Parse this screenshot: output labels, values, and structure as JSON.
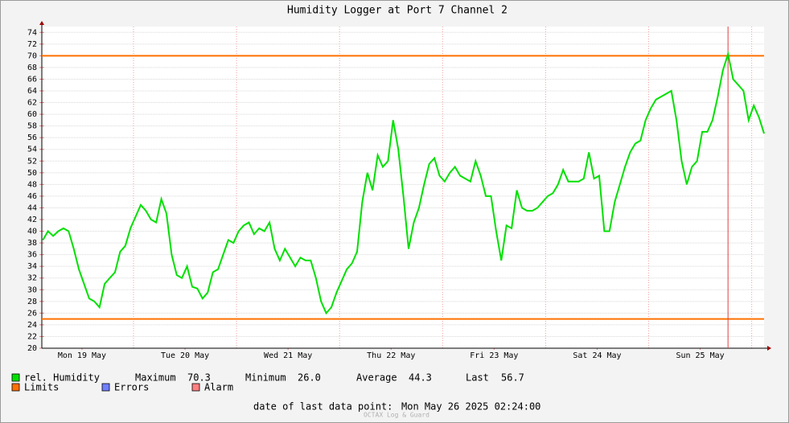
{
  "chart_data": {
    "type": "line",
    "title": "Humidity Logger at Port 7 Channel 2",
    "x": [
      0.12,
      0.17,
      0.22,
      0.27,
      0.32,
      0.37,
      0.42,
      0.47,
      0.52,
      0.57,
      0.62,
      0.67,
      0.72,
      0.77,
      0.82,
      0.87,
      0.92,
      0.97,
      1.02,
      1.07,
      1.12,
      1.17,
      1.22,
      1.27,
      1.32,
      1.37,
      1.42,
      1.47,
      1.52,
      1.57,
      1.62,
      1.67,
      1.72,
      1.77,
      1.82,
      1.87,
      1.92,
      1.97,
      2.02,
      2.07,
      2.12,
      2.17,
      2.22,
      2.27,
      2.32,
      2.37,
      2.42,
      2.47,
      2.52,
      2.57,
      2.62,
      2.67,
      2.72,
      2.77,
      2.82,
      2.87,
      2.92,
      2.97,
      3.02,
      3.07,
      3.12,
      3.17,
      3.22,
      3.27,
      3.32,
      3.37,
      3.42,
      3.47,
      3.52,
      3.57,
      3.62,
      3.67,
      3.72,
      3.77,
      3.82,
      3.87,
      3.92,
      3.97,
      4.02,
      4.07,
      4.12,
      4.17,
      4.22,
      4.27,
      4.32,
      4.37,
      4.42,
      4.47,
      4.52,
      4.57,
      4.62,
      4.67,
      4.72,
      4.77,
      4.82,
      4.87,
      4.92,
      4.97,
      5.02,
      5.07,
      5.12,
      5.17,
      5.22,
      5.27,
      5.32,
      5.37,
      5.42,
      5.47,
      5.52,
      5.57,
      5.62,
      5.67,
      5.72,
      5.77,
      5.82,
      5.87,
      5.92,
      5.97,
      6.02,
      6.07,
      6.12,
      6.17,
      6.22,
      6.27,
      6.32,
      6.37,
      6.42,
      6.47,
      6.52,
      6.57,
      6.62,
      6.67,
      6.72,
      6.77,
      6.82,
      6.87,
      6.92,
      6.97,
      7.02,
      7.07,
      7.12
    ],
    "series": [
      {
        "name": "rel. Humidity",
        "color": "#00e000",
        "values": [
          38.5,
          40,
          39.2,
          40,
          40.5,
          40,
          37,
          33.5,
          31,
          28.5,
          28,
          27,
          31,
          32,
          33,
          36.5,
          37.5,
          40.5,
          42.5,
          44.5,
          43.5,
          42,
          41.5,
          45.5,
          43,
          36,
          32.5,
          32,
          34,
          30.5,
          30.2,
          28.5,
          29.5,
          33,
          33.5,
          36,
          38.5,
          38,
          40,
          41,
          41.5,
          39.5,
          40.5,
          40,
          41.5,
          37,
          35,
          37,
          35.5,
          34,
          35.5,
          35,
          35,
          32,
          28,
          26,
          27,
          29.5,
          31.5,
          33.5,
          34.5,
          36.5,
          45,
          50,
          47,
          53,
          51,
          52,
          59,
          54,
          46,
          37,
          41.5,
          44,
          48,
          51.5,
          52.5,
          49.5,
          48.5,
          50,
          51,
          49.5,
          49,
          48.5,
          52,
          49.5,
          46,
          46,
          40,
          35,
          41,
          40.5,
          47,
          44,
          43.5,
          43.5,
          44,
          45,
          46,
          46.5,
          48,
          50.5,
          48.5,
          48.5,
          48.5,
          49,
          53.5,
          49,
          49.5,
          40,
          40,
          45,
          48,
          51,
          53.5,
          55,
          55.5,
          59,
          61,
          62.5,
          63,
          63.5,
          64,
          59,
          52,
          48,
          51,
          52,
          57,
          57,
          59,
          63,
          67.5,
          70.3,
          66,
          65,
          64,
          59,
          61.5,
          59.5,
          56.7
        ]
      }
    ],
    "xlim": [
      0.11,
      7.12
    ],
    "xticks": [
      {
        "value": 0.5,
        "label": "Mon 19 May"
      },
      {
        "value": 1.5,
        "label": "Tue 20 May"
      },
      {
        "value": 2.5,
        "label": "Wed 21 May"
      },
      {
        "value": 3.5,
        "label": "Thu 22 May"
      },
      {
        "value": 4.5,
        "label": "Fri 23 May"
      },
      {
        "value": 5.5,
        "label": "Sat 24 May"
      },
      {
        "value": 6.5,
        "label": "Sun 25 May"
      }
    ],
    "ylim": [
      20,
      75
    ],
    "yticks": [
      20,
      22,
      24,
      26,
      28,
      30,
      32,
      34,
      36,
      38,
      40,
      42,
      44,
      46,
      48,
      50,
      52,
      54,
      56,
      58,
      60,
      62,
      64,
      66,
      68,
      70,
      72,
      74
    ],
    "grid": true,
    "limits": {
      "name": "Limits",
      "color": "#ff7000",
      "values": [
        70,
        25
      ]
    },
    "errors": {
      "name": "Errors",
      "color": "#7080ff"
    },
    "alarm": {
      "name": "Alarm",
      "color": "#ff8080",
      "x": 6.77
    },
    "stats": [
      {
        "label": "Maximum",
        "value": 70.3
      },
      {
        "label": "Minimum",
        "value": 26.0,
        "value_label": "26.0"
      },
      {
        "label": "Average",
        "value": 44.3
      },
      {
        "label": "Last",
        "value": 56.7
      }
    ],
    "footer": {
      "label": "date of last data point:",
      "date": "Mon May 26 2025 02:24:00"
    },
    "watermark": "OCTAX Log & Guard"
  }
}
